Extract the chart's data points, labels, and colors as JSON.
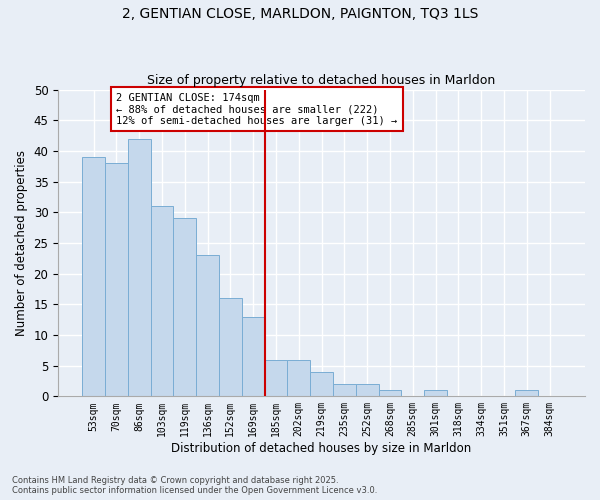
{
  "title1": "2, GENTIAN CLOSE, MARLDON, PAIGNTON, TQ3 1LS",
  "title2": "Size of property relative to detached houses in Marldon",
  "xlabel": "Distribution of detached houses by size in Marldon",
  "ylabel": "Number of detached properties",
  "categories": [
    "53sqm",
    "70sqm",
    "86sqm",
    "103sqm",
    "119sqm",
    "136sqm",
    "152sqm",
    "169sqm",
    "185sqm",
    "202sqm",
    "219sqm",
    "235sqm",
    "252sqm",
    "268sqm",
    "285sqm",
    "301sqm",
    "318sqm",
    "334sqm",
    "351sqm",
    "367sqm",
    "384sqm"
  ],
  "values": [
    39,
    38,
    42,
    31,
    29,
    23,
    16,
    13,
    6,
    6,
    4,
    2,
    2,
    1,
    0,
    1,
    0,
    0,
    0,
    1,
    0
  ],
  "bar_color": "#c5d8ec",
  "bar_edge_color": "#7aadd4",
  "vline_x_idx": 7.5,
  "vline_color": "#cc0000",
  "annotation_text": "2 GENTIAN CLOSE: 174sqm\n← 88% of detached houses are smaller (222)\n12% of semi-detached houses are larger (31) →",
  "annotation_box_color": "#ffffff",
  "annotation_box_edge_color": "#cc0000",
  "ylim": [
    0,
    50
  ],
  "yticks": [
    0,
    5,
    10,
    15,
    20,
    25,
    30,
    35,
    40,
    45,
    50
  ],
  "background_color": "#e8eef6",
  "grid_color": "#ffffff",
  "footer": "Contains HM Land Registry data © Crown copyright and database right 2025.\nContains public sector information licensed under the Open Government Licence v3.0."
}
